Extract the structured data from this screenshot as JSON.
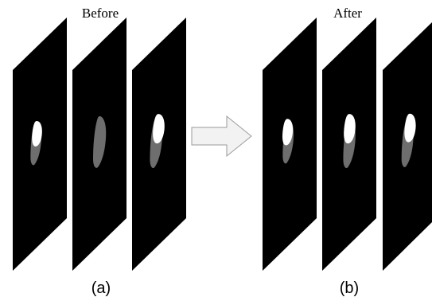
{
  "panel_a": {
    "title": "Before",
    "caption": "(a)"
  },
  "panel_b": {
    "title": "After",
    "caption": "(b)"
  },
  "colors": {
    "slice": "#000000",
    "bright_region": "#ffffff",
    "gray_region": "#6e6e6e",
    "arrow_fill": "#f2f2f2",
    "arrow_stroke": "#9a9a9a"
  },
  "icons": {
    "transition": "right-arrow-icon"
  }
}
